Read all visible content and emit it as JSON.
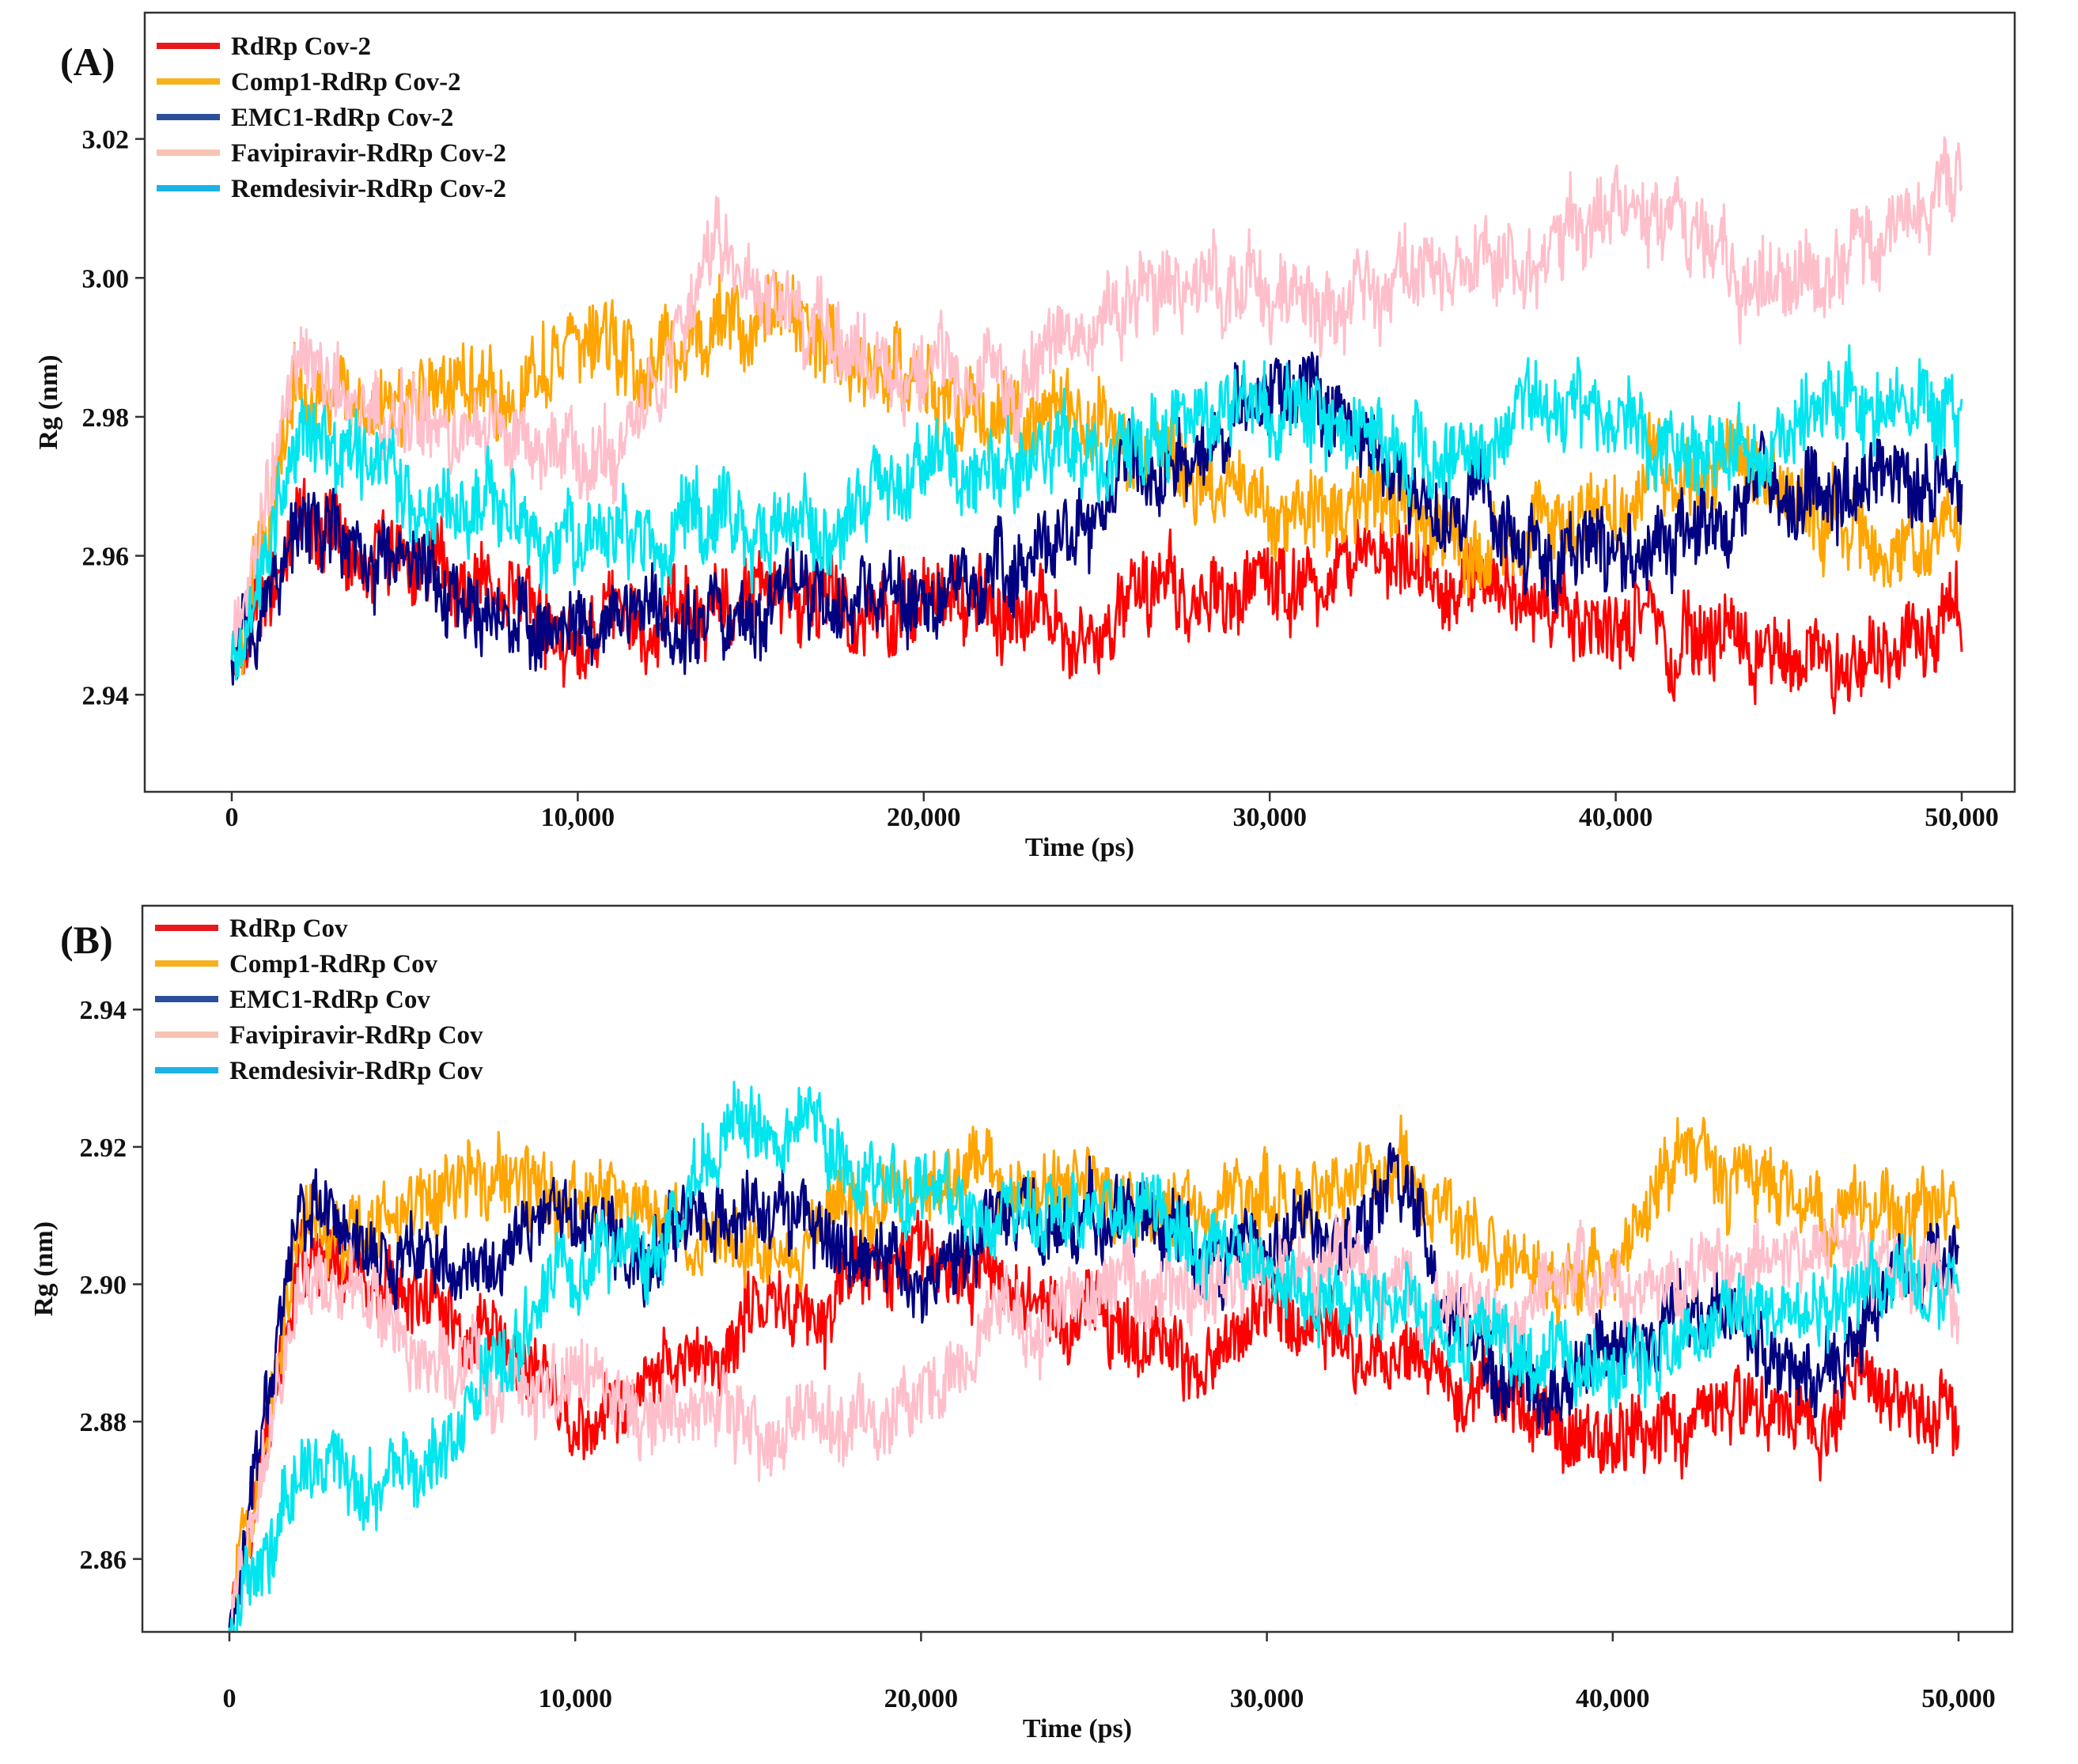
{
  "chart_data": [
    {
      "panel": "(A)",
      "type": "line",
      "xlabel": "Time (ps)",
      "ylabel": "Rg (nm)",
      "xlim": [
        0,
        50000
      ],
      "ylim": [
        2.925,
        3.04
      ],
      "x_ticks": [
        0,
        10000,
        20000,
        30000,
        40000,
        50000
      ],
      "x_tick_labels": [
        "0",
        "10,000",
        "20,000",
        "30,000",
        "40,000",
        "50,000"
      ],
      "y_ticks": [
        2.94,
        2.96,
        2.98,
        3.0,
        3.02
      ],
      "y_tick_labels": [
        "2.94",
        "2.96",
        "2.98",
        "3.00",
        "3.02"
      ],
      "legend_position": "top-left",
      "x": [
        0,
        2000,
        4000,
        6000,
        8000,
        10000,
        12000,
        14000,
        16000,
        18000,
        20000,
        22000,
        24000,
        26000,
        28000,
        30000,
        32000,
        34000,
        36000,
        38000,
        40000,
        42000,
        44000,
        46000,
        48000,
        50000
      ],
      "series": [
        {
          "name": "RdRp Cov-2",
          "legend_color": "#e8191c",
          "line_color": "#ff0000",
          "values": [
            2.945,
            2.965,
            2.962,
            2.958,
            2.955,
            2.948,
            2.95,
            2.953,
            2.955,
            2.95,
            2.952,
            2.955,
            2.95,
            2.952,
            2.955,
            2.955,
            2.956,
            2.957,
            2.955,
            2.953,
            2.95,
            2.948,
            2.95,
            2.945,
            2.948,
            2.952
          ]
        },
        {
          "name": "Comp1-RdRp Cov-2",
          "legend_color": "#f5b21d",
          "line_color": "#ffa500",
          "values": [
            2.945,
            2.985,
            2.982,
            2.985,
            2.984,
            2.99,
            2.988,
            2.992,
            2.995,
            2.988,
            2.985,
            2.978,
            2.982,
            2.975,
            2.97,
            2.965,
            2.968,
            2.966,
            2.962,
            2.964,
            2.968,
            2.975,
            2.975,
            2.965,
            2.96,
            2.968
          ]
        },
        {
          "name": "EMC1-RdRp Cov-2",
          "legend_color": "#2b4f99",
          "line_color": "#000080",
          "values": [
            2.945,
            2.965,
            2.958,
            2.955,
            2.952,
            2.95,
            2.952,
            2.95,
            2.955,
            2.955,
            2.953,
            2.958,
            2.962,
            2.972,
            2.975,
            2.985,
            2.98,
            2.97,
            2.965,
            2.96,
            2.962,
            2.96,
            2.97,
            2.968,
            2.972,
            2.968
          ]
        },
        {
          "name": "Favipiravir-RdRp Cov-2",
          "legend_color": "#f7c3b3",
          "line_color": "#ffbfca",
          "values": [
            2.945,
            2.99,
            2.982,
            2.978,
            2.976,
            2.975,
            2.978,
            3.005,
            2.995,
            2.99,
            2.985,
            2.985,
            2.99,
            2.998,
            3.0,
            2.998,
            2.995,
            3.0,
            2.998,
            3.005,
            3.01,
            3.005,
            3.0,
            3.002,
            3.008,
            3.015
          ]
        },
        {
          "name": "Remdesivir-RdRp Cov-2",
          "legend_color": "#1bb2e6",
          "line_color": "#00e5ee",
          "values": [
            2.945,
            2.978,
            2.972,
            2.966,
            2.965,
            2.962,
            2.963,
            2.965,
            2.965,
            2.966,
            2.97,
            2.972,
            2.975,
            2.978,
            2.98,
            2.982,
            2.98,
            2.978,
            2.976,
            2.985,
            2.978,
            2.975,
            2.978,
            2.98,
            2.982,
            2.98
          ]
        }
      ]
    },
    {
      "panel": "(B)",
      "type": "line",
      "xlabel": "Time (ps)",
      "ylabel": "Rg (nm)",
      "xlim": [
        0,
        50000
      ],
      "ylim": [
        2.848,
        2.955
      ],
      "x_ticks": [
        0,
        10000,
        20000,
        30000,
        40000,
        50000
      ],
      "x_tick_labels": [
        "0",
        "10,000",
        "20,000",
        "30,000",
        "40,000",
        "50,000"
      ],
      "y_ticks": [
        2.86,
        2.88,
        2.9,
        2.92,
        2.94
      ],
      "y_tick_labels": [
        "2.86",
        "2.88",
        "2.90",
        "2.92",
        "2.94"
      ],
      "legend_position": "top-left",
      "x": [
        0,
        2000,
        4000,
        6000,
        8000,
        10000,
        12000,
        14000,
        16000,
        18000,
        20000,
        22000,
        24000,
        26000,
        28000,
        30000,
        32000,
        34000,
        36000,
        38000,
        40000,
        42000,
        44000,
        46000,
        48000,
        50000
      ],
      "series": [
        {
          "name": "RdRp Cov",
          "legend_color": "#e8191c",
          "line_color": "#ff0000",
          "values": [
            2.85,
            2.905,
            2.9,
            2.895,
            2.89,
            2.88,
            2.885,
            2.89,
            2.895,
            2.9,
            2.905,
            2.9,
            2.895,
            2.892,
            2.89,
            2.895,
            2.89,
            2.888,
            2.885,
            2.88,
            2.878,
            2.88,
            2.882,
            2.88,
            2.885,
            2.878
          ]
        },
        {
          "name": "Comp1-RdRp Cov",
          "legend_color": "#f5b21d",
          "line_color": "#ffa500",
          "values": [
            2.85,
            2.91,
            2.908,
            2.912,
            2.915,
            2.912,
            2.91,
            2.905,
            2.908,
            2.91,
            2.912,
            2.915,
            2.915,
            2.912,
            2.91,
            2.912,
            2.915,
            2.918,
            2.905,
            2.9,
            2.902,
            2.918,
            2.915,
            2.91,
            2.912,
            2.91
          ]
        },
        {
          "name": "EMC1-RdRp Cov",
          "legend_color": "#2b4f99",
          "line_color": "#000080",
          "values": [
            2.85,
            2.91,
            2.905,
            2.902,
            2.905,
            2.908,
            2.905,
            2.912,
            2.91,
            2.905,
            2.9,
            2.908,
            2.91,
            2.912,
            2.905,
            2.905,
            2.91,
            2.912,
            2.89,
            2.885,
            2.89,
            2.895,
            2.892,
            2.885,
            2.9,
            2.905
          ]
        },
        {
          "name": "Favipiravir-RdRp Cov",
          "legend_color": "#f7c3b3",
          "line_color": "#ffbfca",
          "values": [
            2.85,
            2.9,
            2.895,
            2.89,
            2.885,
            2.885,
            2.882,
            2.88,
            2.878,
            2.88,
            2.885,
            2.89,
            2.895,
            2.9,
            2.898,
            2.902,
            2.905,
            2.9,
            2.895,
            2.9,
            2.898,
            2.9,
            2.902,
            2.905,
            2.902,
            2.9
          ]
        },
        {
          "name": "Remdesivir-RdRp Cov",
          "legend_color": "#1bb2e6",
          "line_color": "#00e5ee",
          "values": [
            2.85,
            2.875,
            2.87,
            2.875,
            2.89,
            2.9,
            2.905,
            2.92,
            2.925,
            2.918,
            2.915,
            2.912,
            2.91,
            2.91,
            2.908,
            2.902,
            2.898,
            2.895,
            2.892,
            2.89,
            2.888,
            2.892,
            2.895,
            2.895,
            2.9,
            2.902
          ]
        }
      ]
    }
  ]
}
